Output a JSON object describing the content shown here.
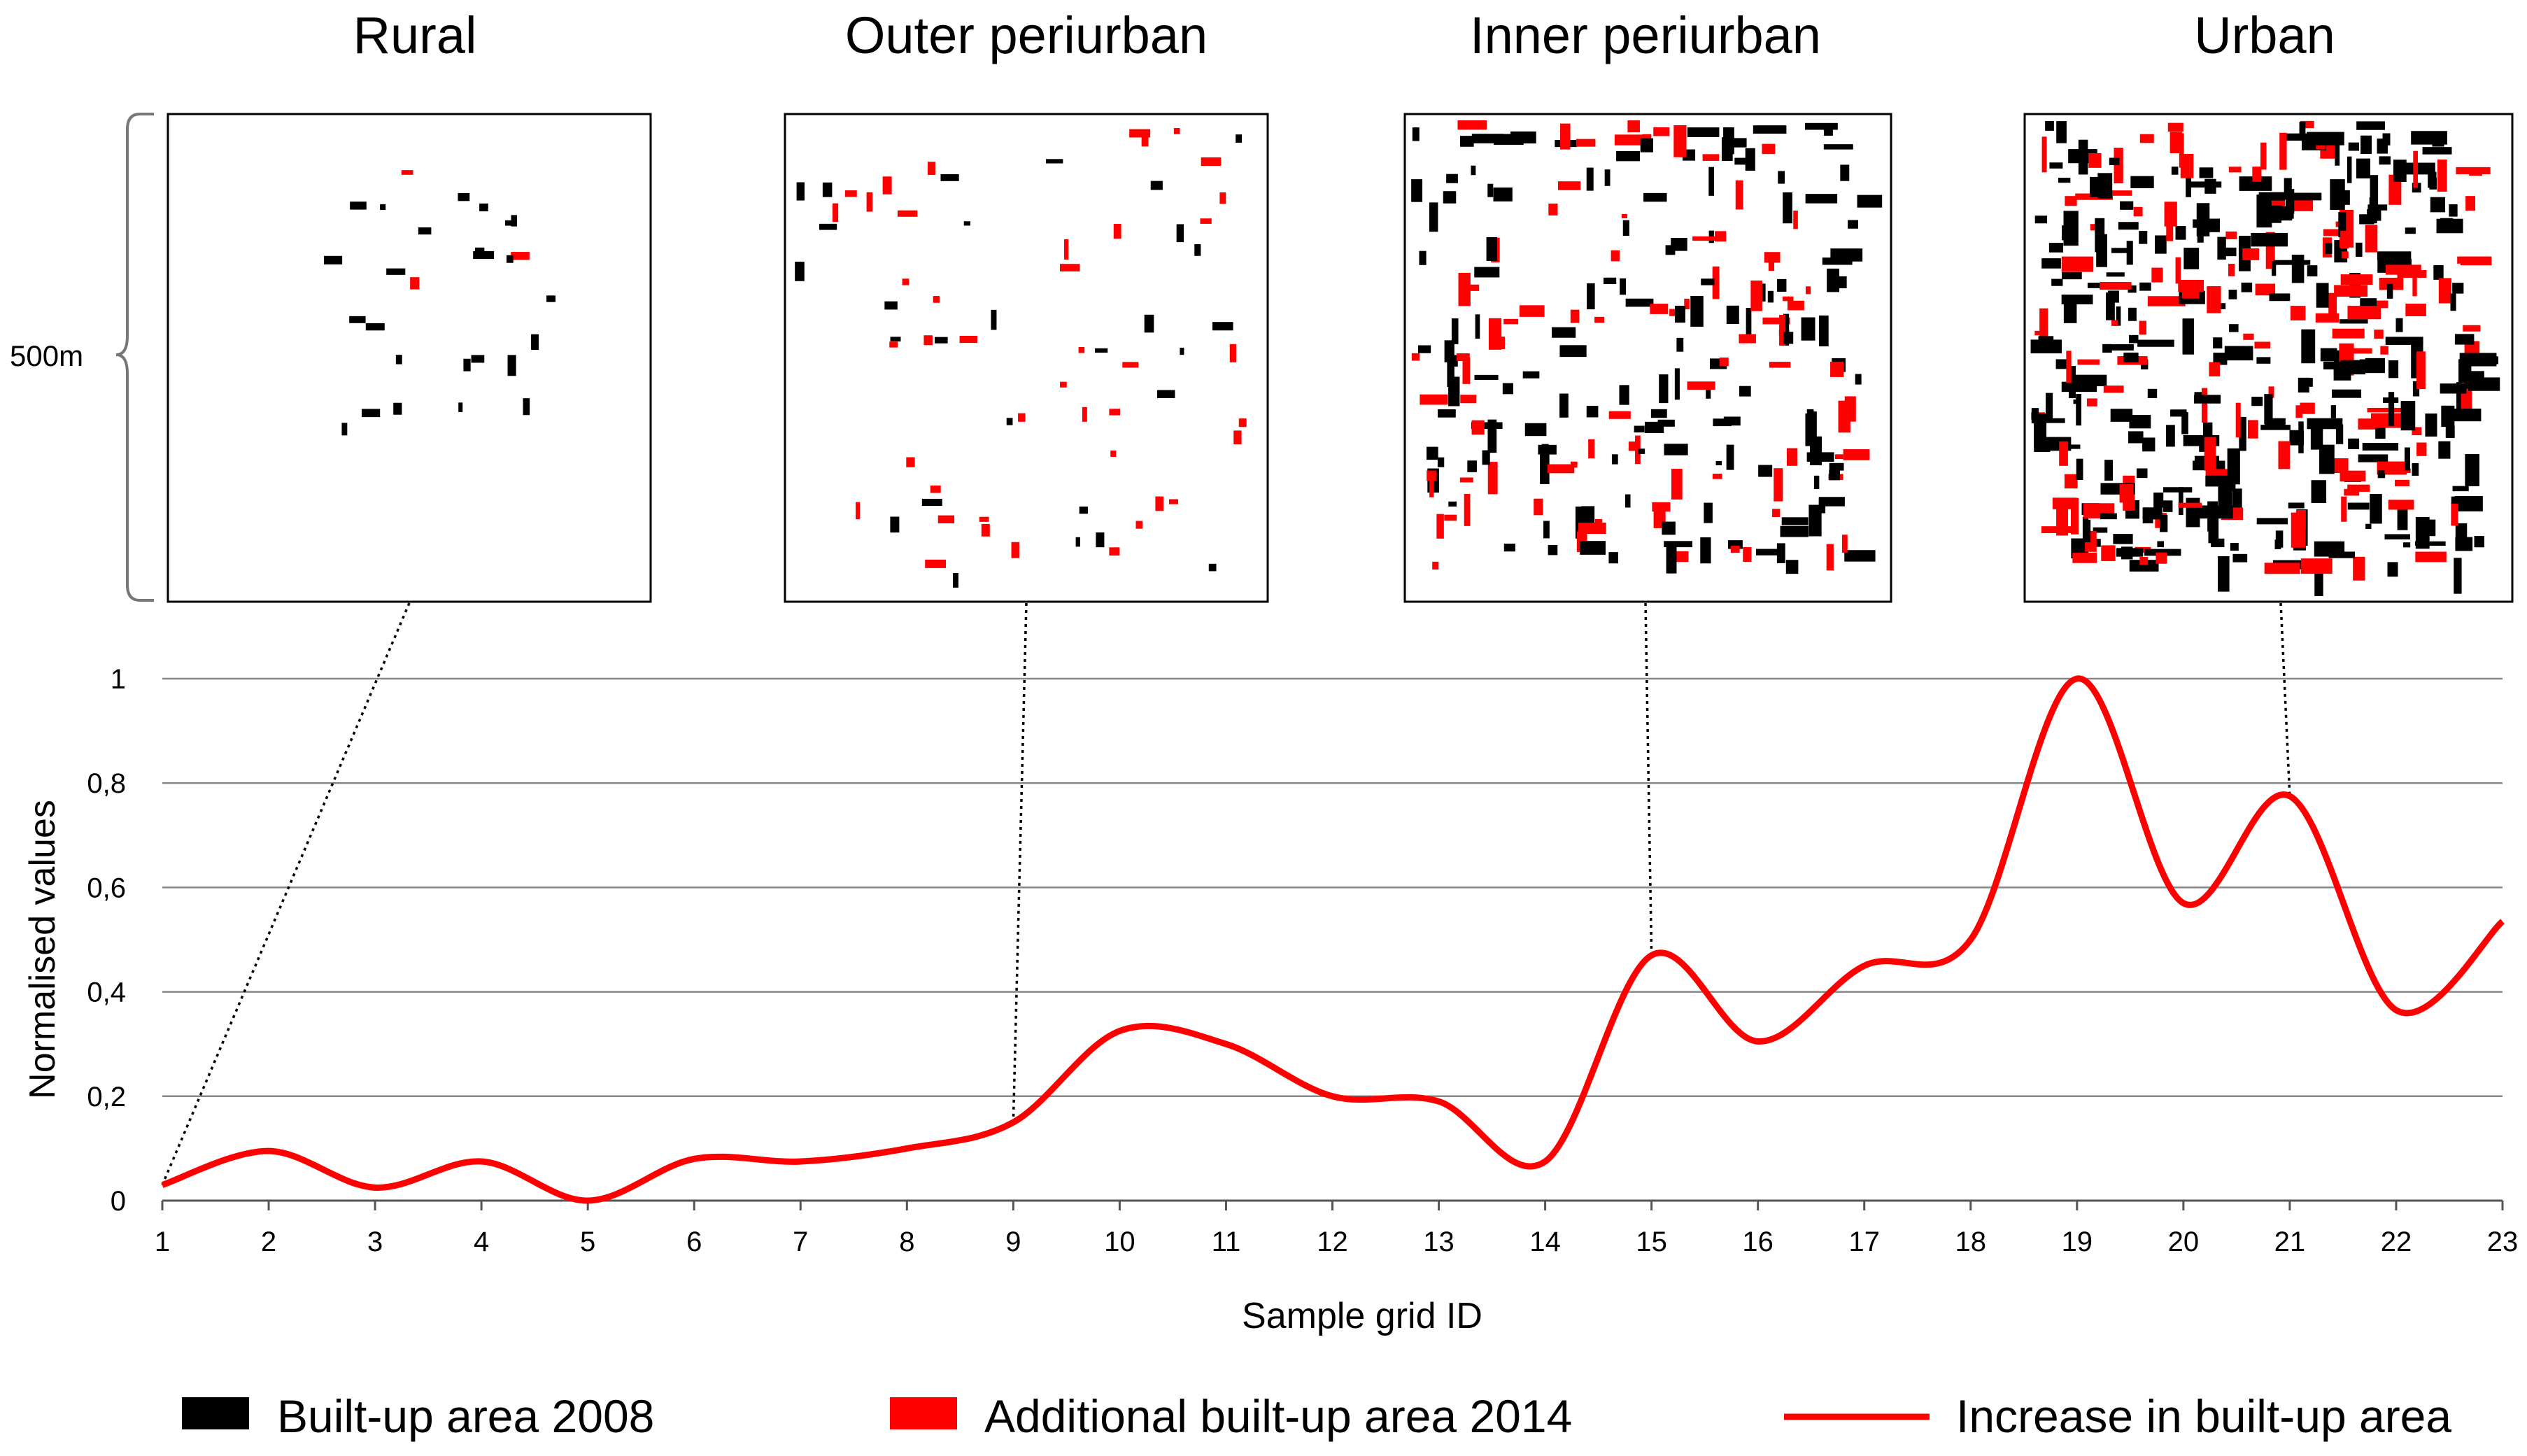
{
  "panels": [
    {
      "title": "Rural",
      "grid_id": 1
    },
    {
      "title": "Outer periurban",
      "grid_id": 9
    },
    {
      "title": "Inner periurban",
      "grid_id": 15
    },
    {
      "title": "Urban",
      "grid_id": 21
    }
  ],
  "scale_label": "500m",
  "legend": [
    {
      "label": "Built-up area 2008",
      "color": "#000000",
      "kind": "swatch"
    },
    {
      "label": "Additional built-up area 2014",
      "color": "#ff0000",
      "kind": "swatch"
    },
    {
      "label": "Increase in built-up area",
      "color": "#ff0000",
      "kind": "line"
    }
  ],
  "chart_data": {
    "type": "line",
    "x": [
      1,
      2,
      3,
      4,
      5,
      6,
      7,
      8,
      9,
      10,
      11,
      12,
      13,
      14,
      15,
      16,
      17,
      18,
      19,
      20,
      21,
      22,
      23
    ],
    "series": [
      {
        "name": "Increase in built-up area",
        "color": "#ff0000",
        "values": [
          0.03,
          0.095,
          0.025,
          0.075,
          0.0,
          0.08,
          0.075,
          0.1,
          0.15,
          0.325,
          0.3,
          0.2,
          0.19,
          0.075,
          0.47,
          0.305,
          0.45,
          0.5,
          1.0,
          0.57,
          0.775,
          0.365,
          0.535
        ]
      }
    ],
    "xlabel": "Sample grid ID",
    "ylabel": "Normalised values",
    "ylim": [
      0,
      1
    ],
    "yticks": [
      "0",
      "0,2",
      "0,4",
      "0,6",
      "0,8",
      "1"
    ],
    "xticks": [
      "1",
      "2",
      "3",
      "4",
      "5",
      "6",
      "7",
      "8",
      "9",
      "10",
      "11",
      "12",
      "13",
      "14",
      "15",
      "16",
      "17",
      "18",
      "19",
      "20",
      "21",
      "22",
      "23"
    ],
    "grid": true
  }
}
